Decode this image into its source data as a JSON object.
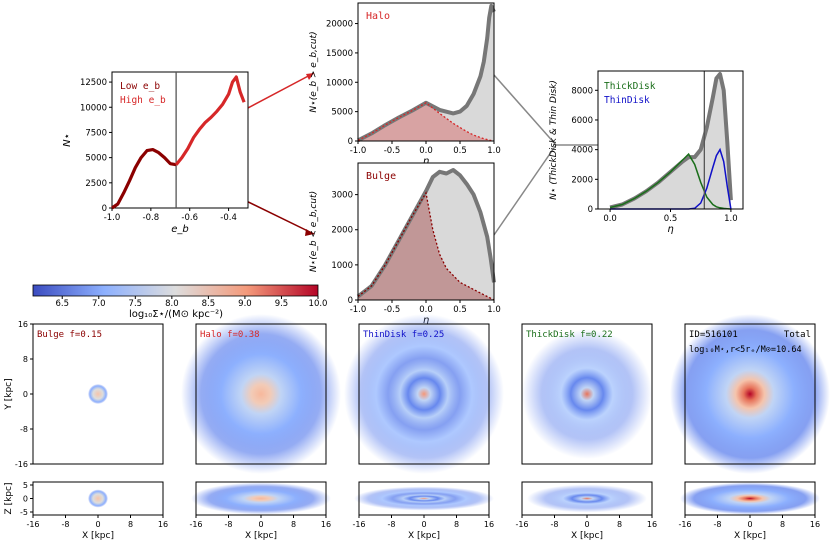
{
  "colors": {
    "axis": "#000000",
    "curve_gray": "#777777",
    "fill_gray": "#d9d9d9",
    "red": "#d62728",
    "darkred": "#8b0000",
    "green": "#1a6e1a",
    "blue": "#1010c8",
    "vline": "#555555",
    "connector": "#888888"
  },
  "colorbar": {
    "ticks": [
      "6.5",
      "7.0",
      "7.5",
      "8.0",
      "8.5",
      "9.0",
      "9.5",
      "10.0"
    ],
    "label": "log₁₀Σ⋆/(M⊙ kpc⁻²)",
    "range": [
      6.1,
      10.0
    ]
  },
  "chart_data": [
    {
      "id": "eb_hist",
      "type": "line",
      "xlabel": "e_b",
      "ylabel": "N⋆",
      "xlim": [
        -1.0,
        -0.3
      ],
      "ylim": [
        0,
        13500
      ],
      "xticks": [
        "-1.0",
        "-0.8",
        "-0.6",
        "-0.4"
      ],
      "yticks": [
        "0",
        "2500",
        "5000",
        "7500",
        "10000",
        "12500"
      ],
      "vline": -0.67,
      "legend": [
        "Low e_b",
        "High e_b"
      ],
      "x": [
        -1.0,
        -0.97,
        -0.94,
        -0.91,
        -0.88,
        -0.85,
        -0.82,
        -0.79,
        -0.76,
        -0.73,
        -0.7,
        -0.67,
        -0.64,
        -0.61,
        -0.58,
        -0.55,
        -0.52,
        -0.49,
        -0.46,
        -0.43,
        -0.4,
        -0.38,
        -0.36,
        -0.34,
        -0.32
      ],
      "y": [
        0,
        400,
        1500,
        2700,
        4000,
        5000,
        5700,
        5800,
        5500,
        5000,
        4400,
        4300,
        5000,
        5900,
        7000,
        7800,
        8500,
        9000,
        9600,
        10300,
        11300,
        12500,
        13000,
        11500,
        10500
      ]
    },
    {
      "id": "halo_eta",
      "type": "area",
      "title": "Halo",
      "xlabel": "η",
      "ylabel": "N⋆(e_b > e_b,cut)",
      "xlim": [
        -1.0,
        1.0
      ],
      "ylim": [
        0,
        23500
      ],
      "xticks": [
        "-1.0",
        "-0.5",
        "0.0",
        "0.5",
        "1.0"
      ],
      "yticks": [
        "0",
        "5000",
        "10000",
        "15000",
        "20000"
      ],
      "x": [
        -1.0,
        -0.8,
        -0.6,
        -0.4,
        -0.2,
        0.0,
        0.2,
        0.4,
        0.5,
        0.6,
        0.7,
        0.8,
        0.85,
        0.9,
        0.93,
        0.96,
        1.0
      ],
      "total": [
        100,
        1300,
        2700,
        4000,
        5200,
        6500,
        5300,
        4700,
        5000,
        6000,
        8000,
        11000,
        13500,
        17500,
        21000,
        23000,
        22000
      ],
      "component": [
        100,
        1300,
        2700,
        4000,
        5200,
        6500,
        4700,
        3000,
        2300,
        1600,
        1000,
        600,
        400,
        250,
        150,
        80,
        0
      ]
    },
    {
      "id": "bulge_eta",
      "type": "area",
      "title": "Bulge",
      "xlabel": "η",
      "ylabel": "N⋆(e_b < e_b,cut)",
      "xlim": [
        -1.0,
        1.0
      ],
      "ylim": [
        0,
        3900
      ],
      "xticks": [
        "-1.0",
        "-0.5",
        "0.0",
        "0.5",
        "1.0"
      ],
      "yticks": [
        "0",
        "1000",
        "2000",
        "3000"
      ],
      "x": [
        -1.0,
        -0.8,
        -0.6,
        -0.4,
        -0.2,
        0.0,
        0.1,
        0.2,
        0.3,
        0.4,
        0.5,
        0.6,
        0.7,
        0.8,
        0.9,
        0.95,
        1.0
      ],
      "total": [
        100,
        400,
        1000,
        1700,
        2400,
        3100,
        3500,
        3650,
        3600,
        3700,
        3550,
        3300,
        3000,
        2500,
        1800,
        1200,
        500
      ],
      "component": [
        100,
        400,
        1000,
        1700,
        2400,
        3050,
        2000,
        1300,
        900,
        700,
        500,
        400,
        300,
        200,
        100,
        50,
        0
      ]
    },
    {
      "id": "disk_eta",
      "type": "line",
      "xlabel": "η",
      "ylabel": "N⋆ (ThickDisk & Thin Disk)",
      "xlim": [
        -0.1,
        1.1
      ],
      "ylim": [
        0,
        9300
      ],
      "xticks": [
        "0.0",
        "0.5",
        "1.0"
      ],
      "yticks": [
        "0",
        "2000",
        "4000",
        "6000",
        "8000"
      ],
      "vline": 0.78,
      "legend": [
        "ThickDisk",
        "ThinDisk"
      ],
      "x": [
        0.0,
        0.1,
        0.2,
        0.3,
        0.4,
        0.5,
        0.6,
        0.65,
        0.7,
        0.75,
        0.8,
        0.85,
        0.88,
        0.91,
        0.94,
        0.97,
        1.0
      ],
      "total": [
        100,
        300,
        700,
        1200,
        1800,
        2500,
        3200,
        3500,
        3500,
        4000,
        5500,
        7500,
        8800,
        9100,
        8000,
        4500,
        600
      ],
      "thick": [
        100,
        300,
        700,
        1200,
        1800,
        2500,
        3300,
        3700,
        3000,
        1800,
        800,
        300,
        150,
        80,
        40,
        20,
        0
      ],
      "thin": [
        0,
        0,
        0,
        0,
        0,
        0,
        0,
        0,
        50,
        400,
        1400,
        2800,
        3600,
        4000,
        3200,
        1500,
        0
      ]
    }
  ],
  "maps": {
    "xlabel": "X [kpc]",
    "ylabel_face": "Y [kpc]",
    "ylabel_edge": "Z [kpc]",
    "xticks": [
      "-16",
      "-8",
      "0",
      "8",
      "16"
    ],
    "yticks_face": [
      "16",
      "8",
      "0",
      "-8",
      "-16"
    ],
    "yticks_edge": [
      "5",
      "0",
      "-5"
    ],
    "panels": [
      {
        "key": "bulge",
        "label": "Bulge f=0.15",
        "color": "#8b0000"
      },
      {
        "key": "halo",
        "label": "Halo f=0.38",
        "color": "#d62728"
      },
      {
        "key": "thin",
        "label": "ThinDisk f=0.25",
        "color": "#1010c8"
      },
      {
        "key": "thick",
        "label": "ThickDisk f=0.22",
        "color": "#1a6e1a"
      },
      {
        "key": "total",
        "label": "ID=516101",
        "label2": "Total",
        "label3": "log₁₀M⋆,r<5rₑ/M⊙=10.64",
        "color": "#000000"
      }
    ]
  }
}
